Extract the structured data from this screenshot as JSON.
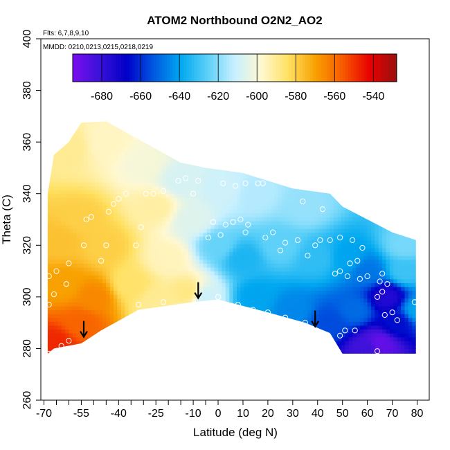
{
  "chart_data": {
    "type": "heatmap",
    "title": "ATOM2 Northbound O2N2_AO2",
    "flights_note": "Flts: 6,7,8,9,10",
    "dates_note": "MMDD: 0210,0213,0215,0218,0219",
    "xlabel": "Latitude (deg N)",
    "ylabel": "Theta (C)",
    "xlim": [
      -70,
      80
    ],
    "ylim": [
      260,
      400
    ],
    "x_ticks": [
      -70,
      -55,
      -40,
      -25,
      -10,
      0,
      10,
      20,
      30,
      40,
      50,
      60,
      70,
      80
    ],
    "x_minor_ticks": [
      -65,
      -60,
      -50,
      -45,
      -35,
      -30,
      -20,
      -15,
      -5
    ],
    "y_ticks": [
      260,
      280,
      300,
      320,
      340,
      360,
      380,
      400
    ],
    "colorbar": {
      "range": [
        -695,
        -528
      ],
      "ticks": [
        -680,
        -660,
        -640,
        -620,
        -600,
        -580,
        -560,
        -540
      ],
      "colors": [
        "#7a0ef0",
        "#3a12d8",
        "#0000c8",
        "#0058e0",
        "#00a8f0",
        "#5cd0f8",
        "#c8f0ff",
        "#fff8d0",
        "#ffe060",
        "#f8a000",
        "#f85a00",
        "#e80000",
        "#9a1010"
      ]
    },
    "value_field": [
      {
        "lat": -65,
        "theta": 282,
        "value": -548
      },
      {
        "lat": -55,
        "theta": 290,
        "value": -558
      },
      {
        "lat": -50,
        "theta": 300,
        "value": -565
      },
      {
        "lat": -62,
        "theta": 305,
        "value": -570
      },
      {
        "lat": -63,
        "theta": 322,
        "value": -577
      },
      {
        "lat": -55,
        "theta": 330,
        "value": -580
      },
      {
        "lat": -45,
        "theta": 320,
        "value": -580
      },
      {
        "lat": -35,
        "theta": 305,
        "value": -585
      },
      {
        "lat": -25,
        "theta": 298,
        "value": -590
      },
      {
        "lat": -20,
        "theta": 315,
        "value": -595
      },
      {
        "lat": -25,
        "theta": 335,
        "value": -592
      },
      {
        "lat": -60,
        "theta": 358,
        "value": -590
      },
      {
        "lat": -45,
        "theta": 360,
        "value": -596
      },
      {
        "lat": -30,
        "theta": 352,
        "value": -600
      },
      {
        "lat": -15,
        "theta": 345,
        "value": -608
      },
      {
        "lat": -10,
        "theta": 330,
        "value": -606
      },
      {
        "lat": -12,
        "theta": 302,
        "value": -588
      },
      {
        "lat": -5,
        "theta": 300,
        "value": -610
      },
      {
        "lat": 0,
        "theta": 320,
        "value": -624
      },
      {
        "lat": 2,
        "theta": 342,
        "value": -610
      },
      {
        "lat": 15,
        "theta": 340,
        "value": -614
      },
      {
        "lat": 10,
        "theta": 315,
        "value": -635
      },
      {
        "lat": 15,
        "theta": 300,
        "value": -640
      },
      {
        "lat": 30,
        "theta": 295,
        "value": -645
      },
      {
        "lat": 25,
        "theta": 320,
        "value": -625
      },
      {
        "lat": 35,
        "theta": 335,
        "value": -618
      },
      {
        "lat": 40,
        "theta": 315,
        "value": -632
      },
      {
        "lat": 45,
        "theta": 290,
        "value": -655
      },
      {
        "lat": 55,
        "theta": 295,
        "value": -650
      },
      {
        "lat": 52,
        "theta": 315,
        "value": -640
      },
      {
        "lat": 60,
        "theta": 310,
        "value": -648
      },
      {
        "lat": 68,
        "theta": 300,
        "value": -675
      },
      {
        "lat": 72,
        "theta": 290,
        "value": -665
      },
      {
        "lat": 65,
        "theta": 282,
        "value": -690
      },
      {
        "lat": 60,
        "theta": 280,
        "value": -682
      },
      {
        "lat": 75,
        "theta": 310,
        "value": -630
      },
      {
        "lat": 75,
        "theta": 320,
        "value": -622
      },
      {
        "lat": 80,
        "theta": 295,
        "value": -640
      }
    ],
    "sample_points": [
      {
        "lat": -68,
        "theta": 278
      },
      {
        "lat": -63,
        "theta": 281
      },
      {
        "lat": -60,
        "theta": 283
      },
      {
        "lat": -68,
        "theta": 297
      },
      {
        "lat": -66,
        "theta": 301
      },
      {
        "lat": -61,
        "theta": 305
      },
      {
        "lat": -68,
        "theta": 308
      },
      {
        "lat": -65,
        "theta": 310
      },
      {
        "lat": -60,
        "theta": 313
      },
      {
        "lat": -54,
        "theta": 320
      },
      {
        "lat": -47,
        "theta": 314
      },
      {
        "lat": -45,
        "theta": 320
      },
      {
        "lat": -53,
        "theta": 330
      },
      {
        "lat": -51,
        "theta": 331
      },
      {
        "lat": -44,
        "theta": 333
      },
      {
        "lat": -42,
        "theta": 336
      },
      {
        "lat": -40,
        "theta": 338
      },
      {
        "lat": -37,
        "theta": 340
      },
      {
        "lat": -46,
        "theta": 286
      },
      {
        "lat": -32,
        "theta": 297
      },
      {
        "lat": -22,
        "theta": 298
      },
      {
        "lat": -33,
        "theta": 320
      },
      {
        "lat": -31,
        "theta": 327
      },
      {
        "lat": -29,
        "theta": 340
      },
      {
        "lat": -26,
        "theta": 340
      },
      {
        "lat": -22,
        "theta": 341
      },
      {
        "lat": -16,
        "theta": 345
      },
      {
        "lat": -13,
        "theta": 346
      },
      {
        "lat": -10,
        "theta": 340
      },
      {
        "lat": -8,
        "theta": 345
      },
      {
        "lat": -4,
        "theta": 323
      },
      {
        "lat": -2,
        "theta": 329
      },
      {
        "lat": 2,
        "theta": 344
      },
      {
        "lat": 1,
        "theta": 324
      },
      {
        "lat": 3,
        "theta": 328
      },
      {
        "lat": 6,
        "theta": 329
      },
      {
        "lat": 9,
        "theta": 330
      },
      {
        "lat": 12,
        "theta": 328
      },
      {
        "lat": 11,
        "theta": 325
      },
      {
        "lat": 7,
        "theta": 343
      },
      {
        "lat": 11,
        "theta": 344
      },
      {
        "lat": 16,
        "theta": 344
      },
      {
        "lat": 18,
        "theta": 344
      },
      {
        "lat": 19,
        "theta": 323
      },
      {
        "lat": 22,
        "theta": 325
      },
      {
        "lat": 25,
        "theta": 318
      },
      {
        "lat": 27,
        "theta": 321
      },
      {
        "lat": 32,
        "theta": 322
      },
      {
        "lat": 34,
        "theta": 337
      },
      {
        "lat": 36,
        "theta": 316
      },
      {
        "lat": 39,
        "theta": 320
      },
      {
        "lat": 41,
        "theta": 322
      },
      {
        "lat": 42,
        "theta": 334
      },
      {
        "lat": 45,
        "theta": 322
      },
      {
        "lat": 49,
        "theta": 323
      },
      {
        "lat": 54,
        "theta": 322
      },
      {
        "lat": 58,
        "theta": 319
      },
      {
        "lat": 47,
        "theta": 309
      },
      {
        "lat": 49,
        "theta": 310
      },
      {
        "lat": 52,
        "theta": 308
      },
      {
        "lat": 53,
        "theta": 313
      },
      {
        "lat": 56,
        "theta": 314
      },
      {
        "lat": 57,
        "theta": 307
      },
      {
        "lat": 60,
        "theta": 308
      },
      {
        "lat": 65,
        "theta": 306
      },
      {
        "lat": 66,
        "theta": 302
      },
      {
        "lat": 64,
        "theta": 300
      },
      {
        "lat": 66,
        "theta": 309
      },
      {
        "lat": 68,
        "theta": 305
      },
      {
        "lat": 70,
        "theta": 294
      },
      {
        "lat": 72,
        "theta": 291
      },
      {
        "lat": 67,
        "theta": 293
      },
      {
        "lat": 64,
        "theta": 279
      },
      {
        "lat": 55,
        "theta": 287
      },
      {
        "lat": 51,
        "theta": 287
      },
      {
        "lat": 49,
        "theta": 285
      },
      {
        "lat": 35,
        "theta": 290
      },
      {
        "lat": 27,
        "theta": 292
      },
      {
        "lat": 20,
        "theta": 294
      },
      {
        "lat": 14,
        "theta": 295
      },
      {
        "lat": 8,
        "theta": 297
      },
      {
        "lat": 0,
        "theta": 300
      },
      {
        "lat": 79,
        "theta": 298
      },
      {
        "lat": 69,
        "theta": 327
      }
    ],
    "arrows": [
      {
        "lat": -54,
        "theta": 288
      },
      {
        "lat": -8,
        "theta": 303
      },
      {
        "lat": 39,
        "theta": 292
      }
    ]
  }
}
